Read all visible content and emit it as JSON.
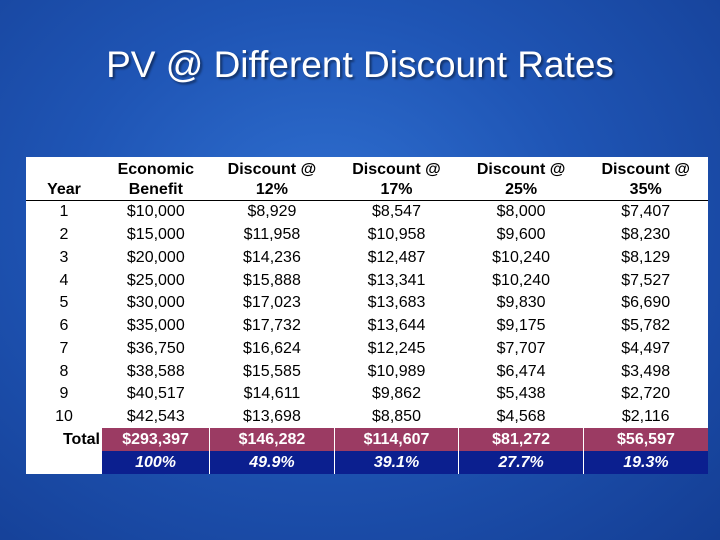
{
  "title": "PV @ Different Discount Rates",
  "table": {
    "headers": {
      "year": "Year",
      "benefit": [
        "Economic",
        "Benefit"
      ],
      "d12": [
        "Discount @",
        "12%"
      ],
      "d17": [
        "Discount @",
        "17%"
      ],
      "d25": [
        "Discount @",
        "25%"
      ],
      "d35": [
        "Discount @",
        "35%"
      ]
    },
    "rows": [
      [
        "1",
        "$10,000",
        "$8,929",
        "$8,547",
        "$8,000",
        "$7,407"
      ],
      [
        "2",
        "$15,000",
        "$11,958",
        "$10,958",
        "$9,600",
        "$8,230"
      ],
      [
        "3",
        "$20,000",
        "$14,236",
        "$12,487",
        "$10,240",
        "$8,129"
      ],
      [
        "4",
        "$25,000",
        "$15,888",
        "$13,341",
        "$10,240",
        "$7,527"
      ],
      [
        "5",
        "$30,000",
        "$17,023",
        "$13,683",
        "$9,830",
        "$6,690"
      ],
      [
        "6",
        "$35,000",
        "$17,732",
        "$13,644",
        "$9,175",
        "$5,782"
      ],
      [
        "7",
        "$36,750",
        "$16,624",
        "$12,245",
        "$7,707",
        "$4,497"
      ],
      [
        "8",
        "$38,588",
        "$15,585",
        "$10,989",
        "$6,474",
        "$3,498"
      ],
      [
        "9",
        "$40,517",
        "$14,611",
        "$9,862",
        "$5,438",
        "$2,720"
      ],
      [
        "10",
        "$42,543",
        "$13,698",
        "$8,850",
        "$4,568",
        "$2,116"
      ]
    ],
    "total": {
      "label": "Total",
      "values": [
        "$293,397",
        "$146,282",
        "$114,607",
        "$81,272",
        "$56,597"
      ]
    },
    "percent": {
      "values": [
        "100%",
        "49.9%",
        "39.1%",
        "27.7%",
        "19.3%"
      ]
    }
  },
  "colors": {
    "background": "#1f55b5",
    "total_row": "#9b3b63",
    "percent_row": "#0b1f8f"
  }
}
